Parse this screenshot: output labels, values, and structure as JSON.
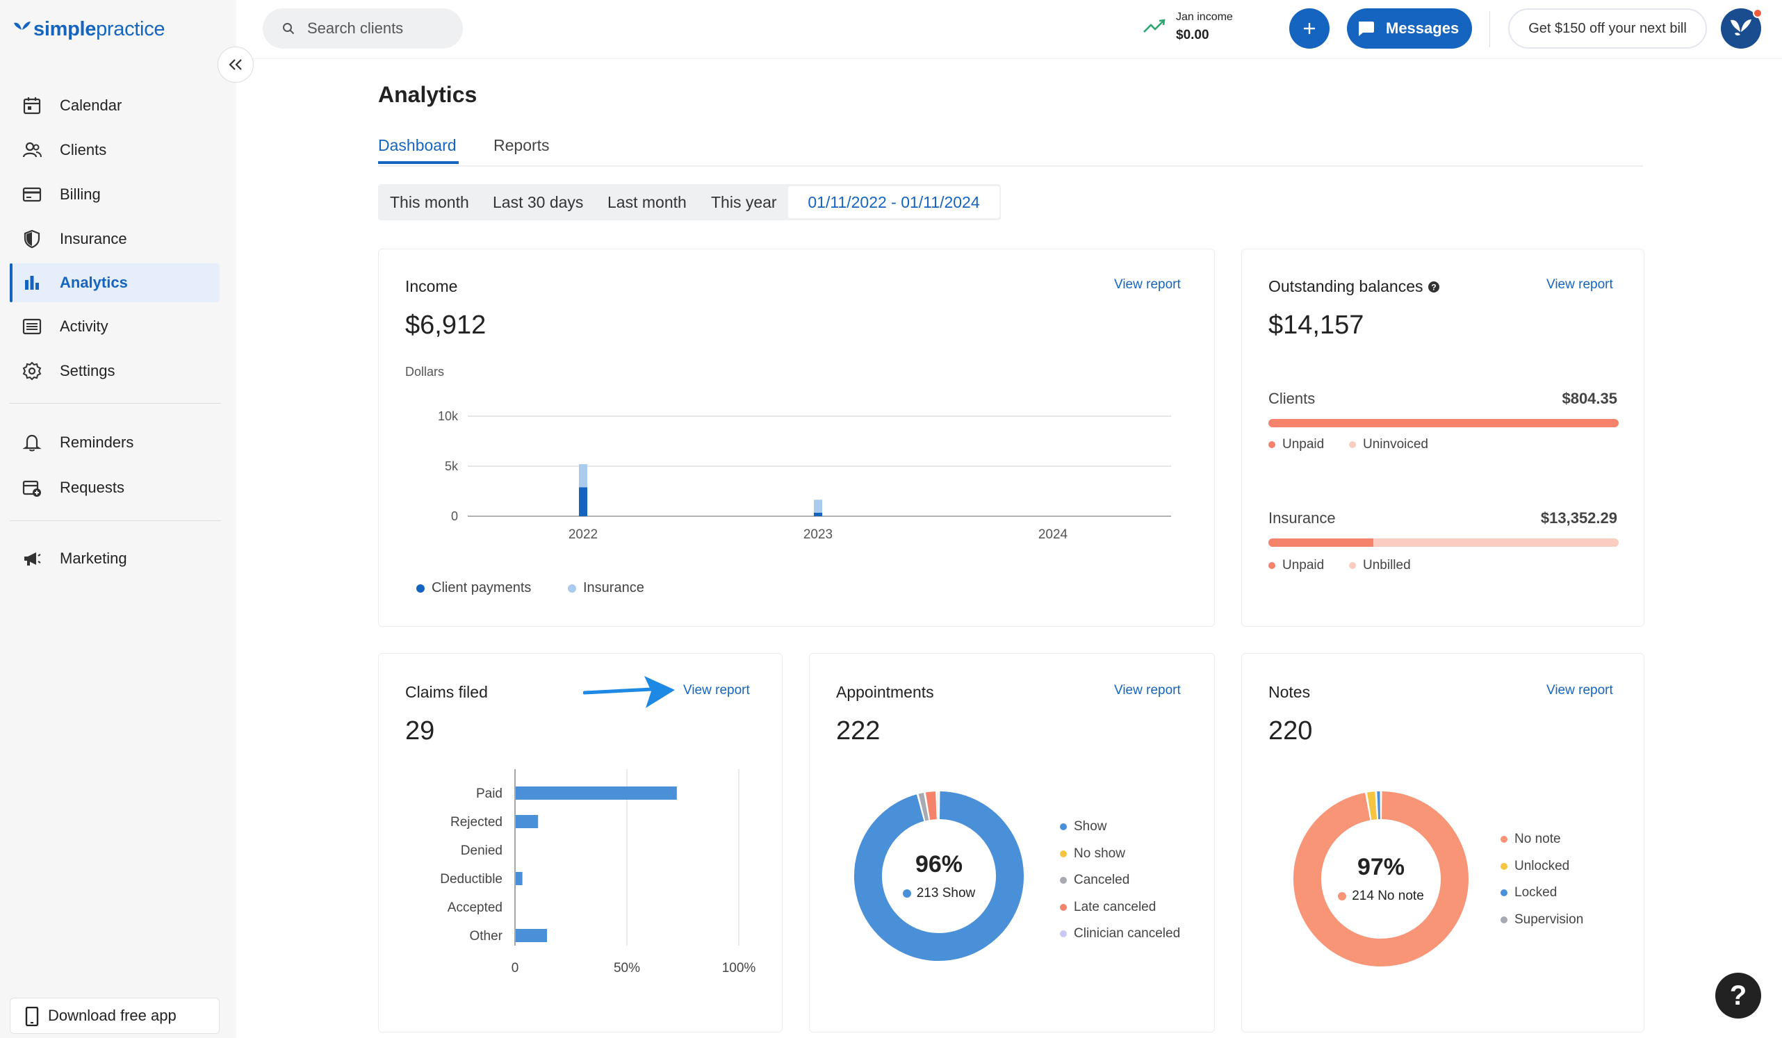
{
  "app": {
    "brand": "simplepractice",
    "brand_bold": "simple",
    "brand_light": "practice"
  },
  "sidebar": {
    "items": [
      {
        "label": "Calendar",
        "icon": "calendar-icon"
      },
      {
        "label": "Clients",
        "icon": "clients-icon"
      },
      {
        "label": "Billing",
        "icon": "billing-icon"
      },
      {
        "label": "Insurance",
        "icon": "shield-icon"
      },
      {
        "label": "Analytics",
        "icon": "bar-chart-icon",
        "active": true
      },
      {
        "label": "Activity",
        "icon": "activity-icon"
      },
      {
        "label": "Settings",
        "icon": "gear-icon"
      },
      {
        "label": "Reminders",
        "icon": "bell-icon"
      },
      {
        "label": "Requests",
        "icon": "calendar-plus-icon"
      },
      {
        "label": "Marketing",
        "icon": "megaphone-icon"
      }
    ],
    "download_label": "Download free app"
  },
  "header": {
    "search_placeholder": "Search clients",
    "income_label": "Jan income",
    "income_value": "$0.00",
    "messages_label": "Messages",
    "promo_label": "Get $150 off your next bill"
  },
  "page": {
    "title": "Analytics",
    "tabs": [
      {
        "label": "Dashboard",
        "active": true
      },
      {
        "label": "Reports"
      }
    ],
    "ranges": [
      "This month",
      "Last 30 days",
      "Last month",
      "This year"
    ],
    "active_range": "01/11/2022 - 01/11/2024"
  },
  "income_card": {
    "title": "Income",
    "value": "$6,912",
    "view_report": "View report",
    "unit_label": "Dollars"
  },
  "balances_card": {
    "title": "Outstanding balances",
    "value": "$14,157",
    "view_report": "View report",
    "clients_label": "Clients",
    "clients_value": "$804.35",
    "clients_legend": [
      "Unpaid",
      "Uninvoiced"
    ],
    "clients_unpaid_fraction": 1.0,
    "insurance_label": "Insurance",
    "insurance_value": "$13,352.29",
    "insurance_legend": [
      "Unpaid",
      "Unbilled"
    ],
    "insurance_unpaid_fraction": 0.3,
    "colors": {
      "unpaid": "#f5826b",
      "other": "#fbcdc0"
    }
  },
  "claims_card": {
    "title": "Claims filed",
    "value": "29",
    "view_report": "View report"
  },
  "appointments_card": {
    "title": "Appointments",
    "value": "222",
    "view_report": "View report",
    "center_pct": "96%",
    "center_label": "213 Show"
  },
  "notes_card": {
    "title": "Notes",
    "value": "220",
    "view_report": "View report",
    "center_pct": "97%",
    "center_label": "214 No note"
  },
  "chart_data": [
    {
      "type": "bar",
      "stacked": true,
      "ylabel": "Dollars",
      "categories": [
        "2022",
        "2023",
        "2024"
      ],
      "yticks": [
        "0",
        "5k",
        "10k"
      ],
      "ylim": [
        0,
        10000
      ],
      "series": [
        {
          "name": "Client payments",
          "color": "#1565c0",
          "values": [
            2900,
            350,
            0
          ]
        },
        {
          "name": "Insurance",
          "color": "#a9cbee",
          "values": [
            2300,
            1300,
            0
          ]
        }
      ],
      "legend": "bottom-left",
      "grid": true
    },
    {
      "type": "bar",
      "orientation": "horizontal",
      "categories": [
        "Paid",
        "Rejected",
        "Denied",
        "Deductible",
        "Accepted",
        "Other"
      ],
      "values": [
        72,
        10,
        0,
        3,
        0,
        14
      ],
      "xticks": [
        "0",
        "50%",
        "100%"
      ],
      "xlim": [
        0,
        100
      ],
      "color": "#4a90d9",
      "grid": true
    },
    {
      "type": "pie",
      "donut": true,
      "labels": [
        "Show",
        "No show",
        "Canceled",
        "Late canceled",
        "Clinician canceled"
      ],
      "values": [
        213,
        0,
        3,
        5,
        1
      ],
      "colors": [
        "#4a90d9",
        "#f5c542",
        "#a5aab3",
        "#f5826b",
        "#c8c8f5"
      ]
    },
    {
      "type": "pie",
      "donut": true,
      "labels": [
        "No note",
        "Unlocked",
        "Locked",
        "Supervision"
      ],
      "values": [
        214,
        4,
        2,
        0
      ],
      "colors": [
        "#f79576",
        "#f5c542",
        "#4a90d9",
        "#a5aab3"
      ]
    }
  ]
}
